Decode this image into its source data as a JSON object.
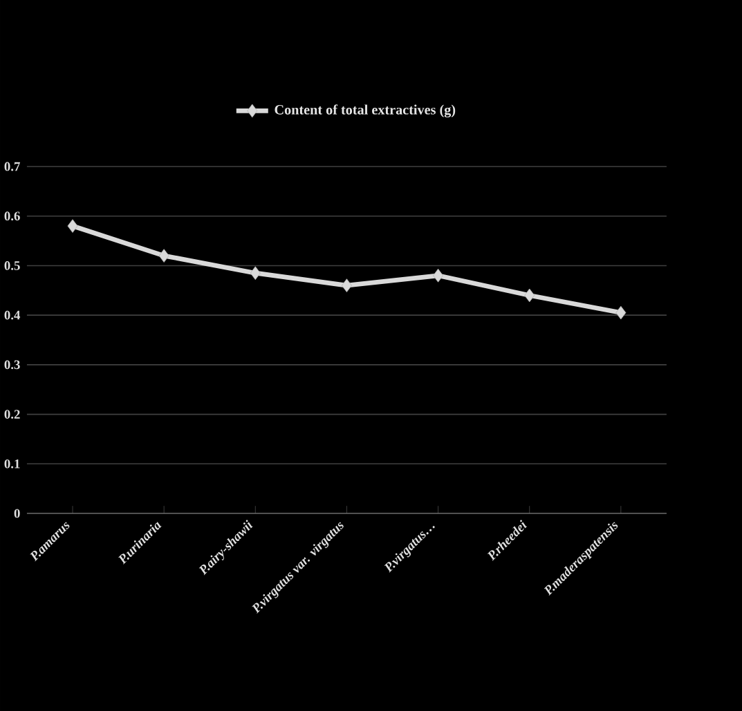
{
  "chart_data": {
    "type": "line",
    "categories": [
      "P.amarus",
      "P.urinaria",
      "P.airy-shawii",
      "P.virgatus var. virgatus",
      "P.virgatus…",
      "P.rheedei",
      "P.maderaspatensis"
    ],
    "series": [
      {
        "name": "Content of total extractives (g)",
        "color": "#d9d9d9",
        "values": [
          0.58,
          0.52,
          0.485,
          0.46,
          0.48,
          0.44,
          0.405
        ]
      }
    ],
    "ylim": [
      0,
      0.7
    ],
    "yticks": [
      0,
      0.1,
      0.2,
      0.3,
      0.4,
      0.5,
      0.6,
      0.7
    ],
    "grid": "y",
    "legend": "top",
    "marker": "diamond",
    "line_style": "solid"
  }
}
